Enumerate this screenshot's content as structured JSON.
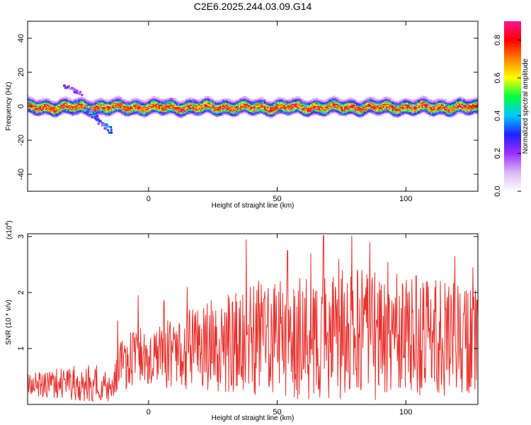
{
  "title": "C2E6.2025.244.03.09.G14",
  "chart_data": [
    {
      "type": "heatmap",
      "title": "C2E6.2025.244.03.09.G14",
      "xlabel": "Height of straight line (km)",
      "ylabel": "Frequency (Hz)",
      "xlim": [
        -47,
        128
      ],
      "ylim": [
        -50,
        50
      ],
      "x_ticks": [
        "0",
        "50",
        "100"
      ],
      "y_ticks": [
        "40",
        "20",
        "0",
        "-20",
        "-40"
      ],
      "colorbar": {
        "label": "Normalized spectral amplitude",
        "range": [
          0.0,
          0.9
        ],
        "ticks": [
          "0.0",
          "0.2",
          "0.4",
          "0.6",
          "0.8"
        ],
        "colors": [
          "#ffffff",
          "#d9b8f5",
          "#9b30ff",
          "#2020ff",
          "#00c8ff",
          "#00ff40",
          "#ffff00",
          "#ff8000",
          "#ff0000",
          "#ff1493"
        ]
      },
      "ridge": {
        "center_freq_hz": 0,
        "band_halfwidth_hz": 4,
        "feature": {
          "x": [
            -25,
            -15
          ],
          "y": [
            0,
            -14
          ]
        },
        "upper_blob": {
          "x": [
            -33,
            -27
          ],
          "y": [
            13,
            8
          ]
        }
      }
    },
    {
      "type": "line",
      "xlabel": "Height of straight line (km)",
      "ylabel": "SNR (10 * v/v)",
      "multiplier": "(x10",
      "multiplier_exp": "4",
      "xlim": [
        -47,
        128
      ],
      "ylim": [
        0,
        3.05
      ],
      "x_ticks": [
        "0",
        "50",
        "100"
      ],
      "y_ticks": [
        "1",
        "2",
        "3"
      ],
      "color": "#e8322d",
      "envelope": {
        "x": [
          -47,
          -20,
          -15,
          -10,
          0,
          10,
          20,
          30,
          40,
          60,
          80,
          100,
          128
        ],
        "mean": [
          0.35,
          0.4,
          0.25,
          0.75,
          0.85,
          0.9,
          1.05,
          1.1,
          1.15,
          1.2,
          1.25,
          1.2,
          1.15
        ],
        "amplitude": [
          0.25,
          0.45,
          0.3,
          0.6,
          0.8,
          0.8,
          1.0,
          1.1,
          1.3,
          1.4,
          1.5,
          1.4,
          1.2
        ]
      },
      "peaks": [
        {
          "x": -12,
          "y": 1.5
        },
        {
          "x": -4,
          "y": 1.95
        },
        {
          "x": 6,
          "y": 1.85
        },
        {
          "x": 15,
          "y": 2.1
        },
        {
          "x": 38,
          "y": 2.95
        },
        {
          "x": 54,
          "y": 2.75
        },
        {
          "x": 63,
          "y": 2.7
        },
        {
          "x": 68,
          "y": 3.02
        },
        {
          "x": 74,
          "y": 2.6
        },
        {
          "x": 79,
          "y": 3.02
        },
        {
          "x": 86,
          "y": 2.9
        },
        {
          "x": 93,
          "y": 2.55
        },
        {
          "x": 104,
          "y": 2.3
        },
        {
          "x": 119,
          "y": 2.65
        },
        {
          "x": 126,
          "y": 2.45
        }
      ]
    }
  ]
}
